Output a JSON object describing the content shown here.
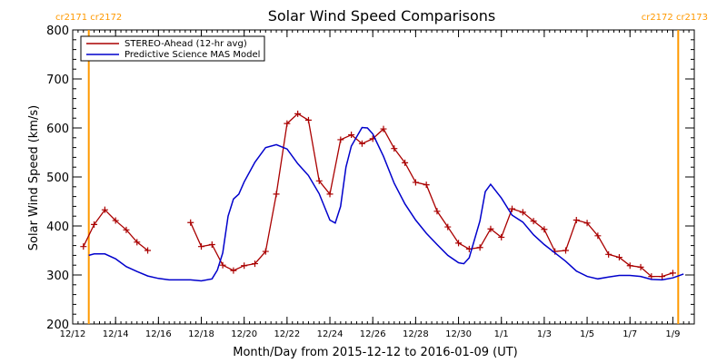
{
  "chart_data": {
    "type": "line",
    "title": "Solar Wind Speed Comparisons",
    "xlabel": "Month/Day from 2015-12-12 to 2016-01-09 (UT)",
    "ylabel": "Solar Wind Speed (km/s)",
    "ylim": [
      200,
      800
    ],
    "xlim": [
      "2015-12-12",
      "2016-01-10"
    ],
    "yticks": [
      "200",
      "300",
      "400",
      "500",
      "600",
      "700",
      "800"
    ],
    "xticks": [
      {
        "date": "2015-12-12",
        "label": "12/12"
      },
      {
        "date": "2015-12-14",
        "label": "12/14"
      },
      {
        "date": "2015-12-16",
        "label": "12/16"
      },
      {
        "date": "2015-12-18",
        "label": "12/18"
      },
      {
        "date": "2015-12-20",
        "label": "12/20"
      },
      {
        "date": "2015-12-22",
        "label": "12/22"
      },
      {
        "date": "2015-12-24",
        "label": "12/24"
      },
      {
        "date": "2015-12-26",
        "label": "12/26"
      },
      {
        "date": "2015-12-28",
        "label": "12/28"
      },
      {
        "date": "2015-12-30",
        "label": "12/30"
      },
      {
        "date": "2016-01-01",
        "label": "1/1"
      },
      {
        "date": "2016-01-03",
        "label": "1/3"
      },
      {
        "date": "2016-01-05",
        "label": "1/5"
      },
      {
        "date": "2016-01-07",
        "label": "1/7"
      },
      {
        "date": "2016-01-09",
        "label": "1/9"
      }
    ],
    "carrington_markers": [
      {
        "date": "2015-12-12 18:00",
        "label": "cr2171 cr2172",
        "align": "left"
      },
      {
        "date": "2016-01-09 06:00",
        "label": "cr2172 cr2173",
        "align": "right"
      }
    ],
    "legend": "top-left",
    "grid": false,
    "series": [
      {
        "name": "STEREO-Ahead (12-hr avg)",
        "color": "#aa0000",
        "marker": "+",
        "segments": [
          [
            [
              "2015-12-12 12:00",
              358
            ],
            [
              "2015-12-13 00:00",
              403
            ],
            [
              "2015-12-13 12:00",
              433
            ],
            [
              "2015-12-14 00:00",
              411
            ],
            [
              "2015-12-14 12:00",
              392
            ],
            [
              "2015-12-15 00:00",
              367
            ],
            [
              "2015-12-15 12:00",
              350
            ]
          ],
          [
            [
              "2015-12-17 12:00",
              407
            ],
            [
              "2015-12-18 00:00",
              358
            ],
            [
              "2015-12-18 12:00",
              362
            ],
            [
              "2015-12-19 00:00",
              320
            ],
            [
              "2015-12-19 12:00",
              309
            ],
            [
              "2015-12-20 00:00",
              319
            ],
            [
              "2015-12-20 12:00",
              323
            ],
            [
              "2015-12-21 00:00",
              348
            ],
            [
              "2015-12-21 12:00",
              465
            ],
            [
              "2015-12-22 00:00",
              609
            ],
            [
              "2015-12-22 12:00",
              629
            ],
            [
              "2015-12-23 00:00",
              616
            ],
            [
              "2015-12-23 12:00",
              492
            ],
            [
              "2015-12-24 00:00",
              465
            ],
            [
              "2015-12-24 12:00",
              576
            ],
            [
              "2015-12-25 00:00",
              586
            ],
            [
              "2015-12-25 12:00",
              568
            ],
            [
              "2015-12-26 00:00",
              578
            ],
            [
              "2015-12-26 12:00",
              598
            ],
            [
              "2015-12-27 00:00",
              558
            ],
            [
              "2015-12-27 12:00",
              529
            ],
            [
              "2015-12-28 00:00",
              489
            ],
            [
              "2015-12-28 12:00",
              484
            ],
            [
              "2015-12-29 00:00",
              430
            ],
            [
              "2015-12-29 12:00",
              398
            ],
            [
              "2015-12-30 00:00",
              365
            ],
            [
              "2015-12-30 12:00",
              353
            ],
            [
              "2015-12-31 00:00",
              356
            ],
            [
              "2015-12-31 12:00",
              394
            ],
            [
              "2016-01-01 00:00",
              377
            ],
            [
              "2016-01-01 12:00",
              435
            ],
            [
              "2016-01-02 00:00",
              428
            ],
            [
              "2016-01-02 12:00",
              410
            ],
            [
              "2016-01-03 00:00",
              393
            ],
            [
              "2016-01-03 12:00",
              348
            ],
            [
              "2016-01-04 00:00",
              350
            ],
            [
              "2016-01-04 12:00",
              412
            ],
            [
              "2016-01-05 00:00",
              406
            ],
            [
              "2016-01-05 12:00",
              380
            ],
            [
              "2016-01-06 00:00",
              342
            ],
            [
              "2016-01-06 12:00",
              336
            ],
            [
              "2016-01-07 00:00",
              319
            ],
            [
              "2016-01-07 12:00",
              316
            ],
            [
              "2016-01-08 00:00",
              297
            ],
            [
              "2016-01-08 12:00",
              297
            ],
            [
              "2016-01-09 00:00",
              304
            ]
          ]
        ]
      },
      {
        "name": "Predictive Science MAS Model",
        "color": "#0000cc",
        "marker": "none",
        "segments": [
          [
            [
              "2015-12-12 18:00",
              340
            ],
            [
              "2015-12-13 00:00",
              343
            ],
            [
              "2015-12-13 12:00",
              343
            ],
            [
              "2015-12-14 00:00",
              333
            ],
            [
              "2015-12-14 12:00",
              317
            ],
            [
              "2015-12-15 00:00",
              307
            ],
            [
              "2015-12-15 12:00",
              298
            ],
            [
              "2015-12-16 00:00",
              293
            ],
            [
              "2015-12-16 12:00",
              290
            ],
            [
              "2015-12-17 00:00",
              290
            ],
            [
              "2015-12-17 12:00",
              290
            ],
            [
              "2015-12-18 00:00",
              288
            ],
            [
              "2015-12-18 12:00",
              292
            ],
            [
              "2015-12-18 18:00",
              310
            ],
            [
              "2015-12-19 00:00",
              345
            ],
            [
              "2015-12-19 06:00",
              420
            ],
            [
              "2015-12-19 12:00",
              455
            ],
            [
              "2015-12-19 18:00",
              465
            ],
            [
              "2015-12-20 00:00",
              490
            ],
            [
              "2015-12-20 12:00",
              530
            ],
            [
              "2015-12-21 00:00",
              560
            ],
            [
              "2015-12-21 12:00",
              566
            ],
            [
              "2015-12-22 00:00",
              557
            ],
            [
              "2015-12-22 12:00",
              527
            ],
            [
              "2015-12-23 00:00",
              503
            ],
            [
              "2015-12-23 12:00",
              466
            ],
            [
              "2015-12-24 00:00",
              412
            ],
            [
              "2015-12-24 06:00",
              406
            ],
            [
              "2015-12-24 12:00",
              440
            ],
            [
              "2015-12-24 18:00",
              520
            ],
            [
              "2015-12-25 00:00",
              563
            ],
            [
              "2015-12-25 12:00",
              601
            ],
            [
              "2015-12-25 18:00",
              600
            ],
            [
              "2015-12-26 00:00",
              588
            ],
            [
              "2015-12-26 12:00",
              542
            ],
            [
              "2015-12-27 00:00",
              487
            ],
            [
              "2015-12-27 12:00",
              445
            ],
            [
              "2015-12-28 00:00",
              412
            ],
            [
              "2015-12-28 12:00",
              385
            ],
            [
              "2015-12-29 00:00",
              362
            ],
            [
              "2015-12-29 12:00",
              340
            ],
            [
              "2015-12-30 00:00",
              325
            ],
            [
              "2015-12-30 06:00",
              323
            ],
            [
              "2015-12-30 12:00",
              335
            ],
            [
              "2015-12-31 00:00",
              410
            ],
            [
              "2015-12-31 06:00",
              470
            ],
            [
              "2015-12-31 12:00",
              485
            ],
            [
              "2016-01-01 00:00",
              457
            ],
            [
              "2016-01-01 12:00",
              422
            ],
            [
              "2016-01-02 00:00",
              408
            ],
            [
              "2016-01-02 12:00",
              382
            ],
            [
              "2016-01-03 00:00",
              362
            ],
            [
              "2016-01-03 12:00",
              345
            ],
            [
              "2016-01-04 00:00",
              328
            ],
            [
              "2016-01-04 12:00",
              308
            ],
            [
              "2016-01-05 00:00",
              297
            ],
            [
              "2016-01-05 12:00",
              292
            ],
            [
              "2016-01-06 00:00",
              296
            ],
            [
              "2016-01-06 12:00",
              299
            ],
            [
              "2016-01-07 00:00",
              299
            ],
            [
              "2016-01-07 12:00",
              297
            ],
            [
              "2016-01-08 00:00",
              291
            ],
            [
              "2016-01-08 12:00",
              290
            ],
            [
              "2016-01-09 00:00",
              294
            ],
            [
              "2016-01-09 12:00",
              302
            ]
          ]
        ]
      }
    ]
  }
}
